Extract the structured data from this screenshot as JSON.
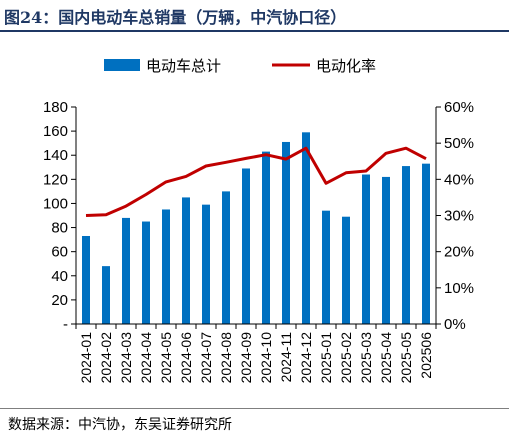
{
  "figure": {
    "title": "图24：国内电动车总销量（万辆，中汽协口径）",
    "source": "数据来源：中汽协，东吴证券研究所"
  },
  "chart_data": {
    "type": "bar",
    "categories": [
      "2024-01",
      "2024-02",
      "2024-03",
      "2024-04",
      "2024-05",
      "2024-06",
      "2024-07",
      "2024-08",
      "2024-09",
      "2024-10",
      "2024-11",
      "2024-12",
      "2025-01",
      "2025-02",
      "2025-03",
      "2025-04",
      "2025-05",
      "202506"
    ],
    "series": [
      {
        "name": "电动车总计",
        "type": "bar",
        "axis": "left",
        "color": "#0070c0",
        "values": [
          73,
          48,
          88,
          85,
          95,
          105,
          99,
          110,
          129,
          143,
          151,
          159,
          94,
          89,
          124,
          122,
          131,
          133
        ]
      },
      {
        "name": "电动化率",
        "type": "line",
        "axis": "right",
        "color": "#c00000",
        "values": [
          30,
          30.2,
          32.6,
          35.8,
          39.3,
          40.8,
          43.7,
          44.7,
          45.8,
          46.8,
          45.6,
          48.6,
          38.9,
          41.8,
          42.3,
          47.2,
          48.6,
          45.7
        ]
      }
    ],
    "y_left": {
      "min": 0,
      "max": 180,
      "step": 20,
      "ticks": [
        "-",
        "20",
        "40",
        "60",
        "80",
        "100",
        "120",
        "140",
        "160",
        "180"
      ]
    },
    "y_right": {
      "min": 0,
      "max": 60,
      "step": 10,
      "ticks": [
        "0%",
        "10%",
        "20%",
        "30%",
        "40%",
        "50%",
        "60%"
      ]
    },
    "grid": false,
    "legend_position": "top"
  }
}
